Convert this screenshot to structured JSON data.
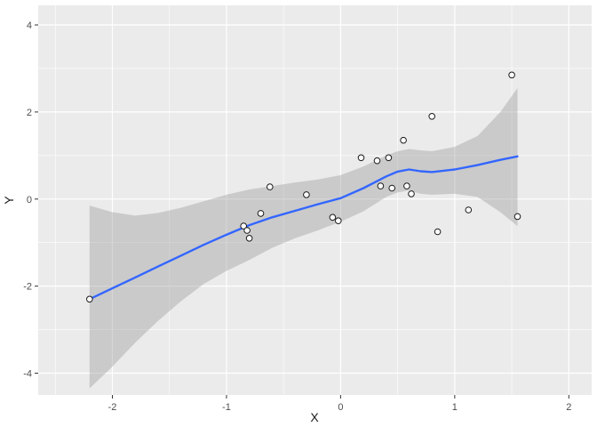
{
  "chart_data": {
    "type": "scatter",
    "title": "",
    "xlabel": "X",
    "ylabel": "Y",
    "x_domain": [
      -2.65,
      2.2
    ],
    "y_domain": [
      -4.5,
      4.45
    ],
    "x_ticks": [
      -2,
      -1,
      0,
      1,
      2
    ],
    "x_minor_ticks": [
      -2.5,
      -1.5,
      -0.5,
      0.5,
      1.5
    ],
    "y_ticks": [
      -4,
      -2,
      0,
      2,
      4
    ],
    "y_minor_ticks": [
      -3,
      -1,
      1,
      3
    ],
    "grid": true,
    "legend": "none",
    "panel_background": "#EBEBEB",
    "gridline_color": "#FFFFFF",
    "tick_color": "#333333",
    "tick_label_color": "#4D4D4D",
    "axis_title_color": "#1A1A1A",
    "point_style": {
      "fill": "#FFFFFF",
      "stroke": "#1A1A1A",
      "radius": 3.3
    },
    "smooth_color": "#3366FF",
    "ribbon_color": "#9E9E9E",
    "ribbon_opacity": 0.42,
    "points": [
      [
        -2.2,
        -2.3
      ],
      [
        -0.85,
        -0.62
      ],
      [
        -0.82,
        -0.72
      ],
      [
        -0.8,
        -0.9
      ],
      [
        -0.7,
        -0.33
      ],
      [
        -0.62,
        0.28
      ],
      [
        -0.3,
        0.1
      ],
      [
        -0.07,
        -0.42
      ],
      [
        -0.02,
        -0.5
      ],
      [
        0.18,
        0.95
      ],
      [
        0.32,
        0.88
      ],
      [
        0.35,
        0.3
      ],
      [
        0.42,
        0.95
      ],
      [
        0.45,
        0.25
      ],
      [
        0.55,
        1.35
      ],
      [
        0.58,
        0.3
      ],
      [
        0.62,
        0.12
      ],
      [
        0.8,
        1.9
      ],
      [
        0.85,
        -0.75
      ],
      [
        1.12,
        -0.25
      ],
      [
        1.5,
        2.85
      ],
      [
        1.55,
        -0.4
      ]
    ],
    "smooth": {
      "x": [
        -2.2,
        -2.0,
        -1.8,
        -1.6,
        -1.4,
        -1.2,
        -1.0,
        -0.8,
        -0.6,
        -0.4,
        -0.2,
        0.0,
        0.2,
        0.4,
        0.5,
        0.6,
        0.7,
        0.8,
        1.0,
        1.2,
        1.4,
        1.55
      ],
      "y": [
        -2.3,
        -2.05,
        -1.8,
        -1.55,
        -1.3,
        -1.05,
        -0.82,
        -0.6,
        -0.42,
        -0.27,
        -0.12,
        0.02,
        0.25,
        0.52,
        0.63,
        0.68,
        0.64,
        0.62,
        0.68,
        0.78,
        0.9,
        0.98
      ]
    },
    "ribbon": {
      "x": [
        -2.2,
        -2.0,
        -1.8,
        -1.6,
        -1.4,
        -1.2,
        -1.0,
        -0.8,
        -0.6,
        -0.4,
        -0.2,
        0.0,
        0.2,
        0.4,
        0.5,
        0.6,
        0.7,
        0.8,
        1.0,
        1.2,
        1.4,
        1.55
      ],
      "upper": [
        -0.15,
        -0.3,
        -0.38,
        -0.32,
        -0.2,
        -0.05,
        0.1,
        0.22,
        0.3,
        0.38,
        0.45,
        0.55,
        0.75,
        1.0,
        1.1,
        1.15,
        1.12,
        1.1,
        1.2,
        1.45,
        2.0,
        2.55
      ],
      "lower": [
        -4.35,
        -3.85,
        -3.3,
        -2.8,
        -2.35,
        -1.95,
        -1.65,
        -1.4,
        -1.12,
        -0.9,
        -0.72,
        -0.52,
        -0.28,
        0.05,
        0.15,
        0.2,
        0.12,
        0.1,
        0.12,
        0.05,
        -0.3,
        -0.62
      ]
    }
  }
}
